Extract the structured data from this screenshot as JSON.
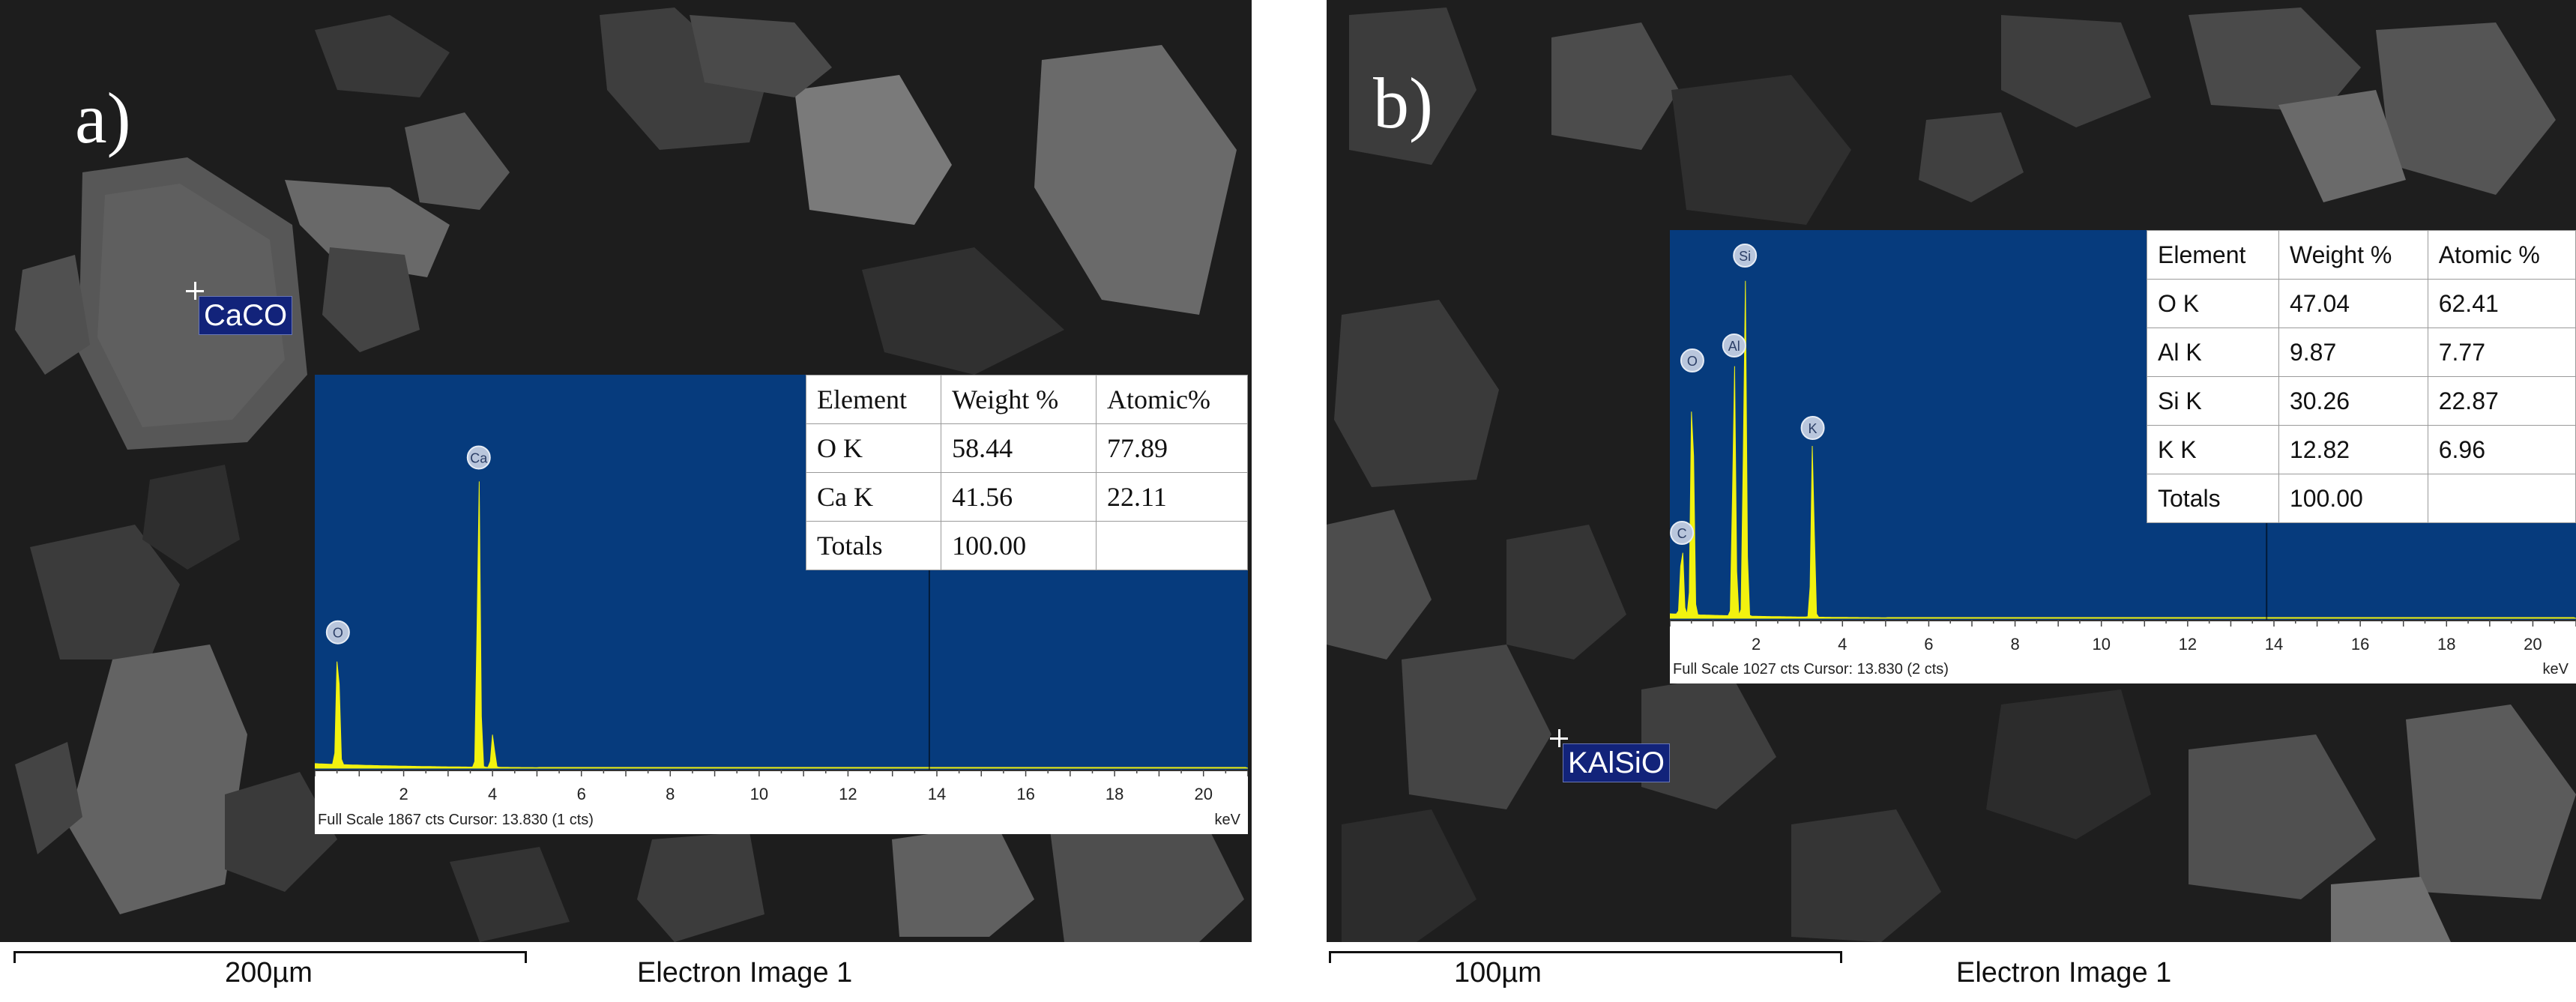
{
  "panels": [
    {
      "letter": "a)",
      "spot_label": "CaCO",
      "spectrum": {
        "peaks": [
          {
            "label": "O",
            "kev": 0.52,
            "height": 0.33
          },
          {
            "label": "Ca",
            "kev": 3.69,
            "height": 0.79
          },
          {
            "label": "",
            "kev": 4.01,
            "height": 0.09
          }
        ],
        "axis_ticks": [
          "2",
          "4",
          "6",
          "8",
          "10",
          "12",
          "14",
          "16",
          "18",
          "20"
        ],
        "axis_max_kev": 21,
        "cursor_kev": 13.83,
        "full_scale_text": "Full Scale 1867 cts Cursor: 13.830  (1 cts)",
        "unit": "keV"
      },
      "table": {
        "headers": [
          "Element",
          "Weight %",
          "Atomic%"
        ],
        "rows": [
          [
            "O K",
            "58.44",
            "77.89"
          ],
          [
            "Ca K",
            "41.56",
            "22.11"
          ],
          [
            "Totals",
            "100.00",
            ""
          ]
        ]
      },
      "scale_bar_label": "200µm",
      "image_caption": "Electron Image 1"
    },
    {
      "letter": "b)",
      "spot_label": "KAlSiO",
      "spectrum": {
        "peaks": [
          {
            "label": "C",
            "kev": 0.28,
            "height": 0.2
          },
          {
            "label": "O",
            "kev": 0.52,
            "height": 0.66
          },
          {
            "label": "Al",
            "kev": 1.49,
            "height": 0.7
          },
          {
            "label": "Si",
            "kev": 1.74,
            "height": 0.94
          },
          {
            "label": "K",
            "kev": 3.31,
            "height": 0.48
          }
        ],
        "axis_ticks": [
          "2",
          "4",
          "6",
          "8",
          "10",
          "12",
          "14",
          "16",
          "18",
          "20"
        ],
        "axis_max_kev": 21,
        "cursor_kev": 13.83,
        "full_scale_text": "Full Scale 1027 cts Cursor: 13.830  (2 cts)",
        "unit": "keV"
      },
      "table": {
        "headers": [
          "Element",
          "Weight %",
          "Atomic %"
        ],
        "rows": [
          [
            "O K",
            "47.04",
            "62.41"
          ],
          [
            "Al K",
            "9.87",
            "7.77"
          ],
          [
            "Si K",
            "30.26",
            "22.87"
          ],
          [
            "K K",
            "12.82",
            "6.96"
          ],
          [
            "Totals",
            "100.00",
            ""
          ]
        ]
      },
      "scale_bar_label": "100µm",
      "image_caption": "Electron Image 1"
    }
  ],
  "colors": {
    "spectrum_background": "#063b7d",
    "peak_fill": "#f2f20f",
    "spot_label_background": "#12237a"
  }
}
